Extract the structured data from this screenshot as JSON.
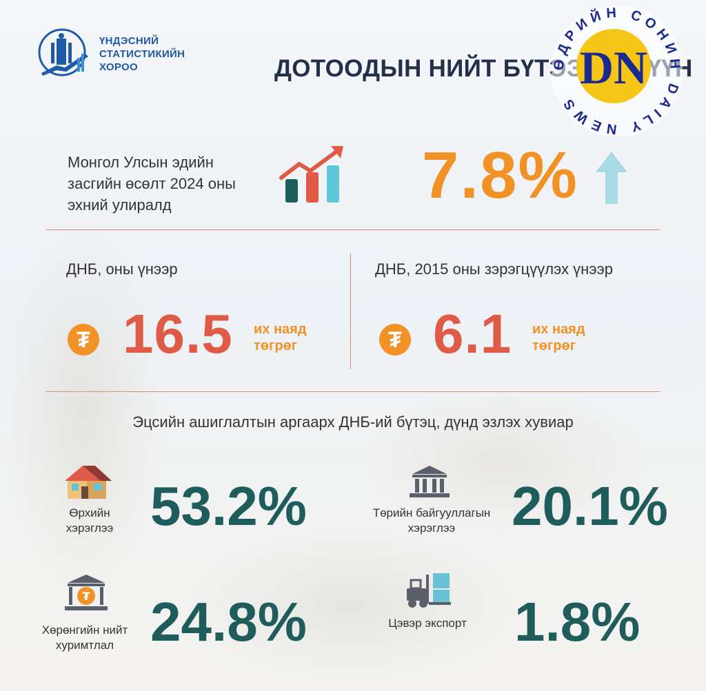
{
  "header": {
    "org_lines": [
      "ҮНДЭСНИЙ",
      "СТАТИСТИКИЙН",
      "ХОРОО"
    ],
    "title": "ДОТООДЫН НИЙТ БҮТЭЭГДЭХҮҮН",
    "badge_letters": "DN",
    "badge_ring_text": "ӨДРИЙН СОНИН DAILY NEWS"
  },
  "growth": {
    "label": "Монгол Улсын эдийн засгийн өсөлт 2024 оны эхний улиралд",
    "value": "7.8%"
  },
  "gdp": [
    {
      "label": "ДНБ, оны үнээр",
      "currency_symbol": "₮",
      "value": "16.5",
      "unit_line1": "их наяд",
      "unit_line2": "төгрөг"
    },
    {
      "label": "ДНБ, 2015 оны зэрэгцүүлэх үнээр",
      "currency_symbol": "₮",
      "value": "6.1",
      "unit_line1": "их наяд",
      "unit_line2": "төгрөг"
    }
  ],
  "structure": {
    "title": "Эцсийн ашиглалтын аргаарх ДНБ-ий бүтэц, дүнд эзлэх хувиар",
    "items": [
      {
        "label": "Өрхийн хэрэглээ",
        "value": "53.2%",
        "icon": "house-icon"
      },
      {
        "label": "Төрийн байгууллагын хэрэглээ",
        "value": "20.1%",
        "icon": "government-building-icon"
      },
      {
        "label": "Хөрөнгийн нийт хуримтлал",
        "value": "24.8%",
        "icon": "bank-tugrik-icon"
      },
      {
        "label": "Цэвэр экспорт",
        "value": "1.8%",
        "icon": "forklift-icon"
      }
    ]
  },
  "colors": {
    "title": "#24304a",
    "logo_blue": "#1f5aa6",
    "orange": "#f29226",
    "red": "#e05a48",
    "teal": "#1f5c5c",
    "divider": "#e0897b",
    "arrow": "#a9d9e3",
    "badge_yellow": "#f5c518",
    "badge_navy": "#1a2a8f"
  }
}
